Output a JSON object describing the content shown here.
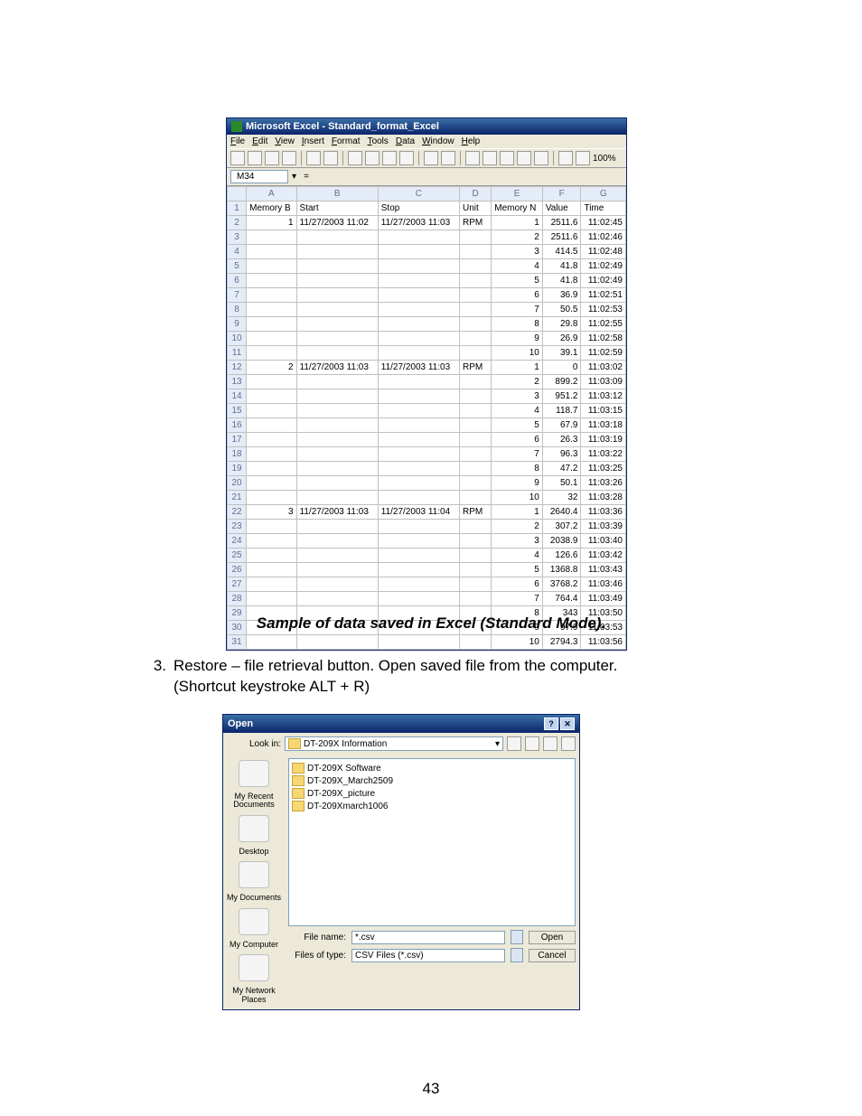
{
  "excel": {
    "title": "Microsoft Excel - Standard_format_Excel",
    "menus": [
      "File",
      "Edit",
      "View",
      "Insert",
      "Format",
      "Tools",
      "Data",
      "Window",
      "Help"
    ],
    "namebox": "M34",
    "zoom": "100%",
    "columns": [
      "A",
      "B",
      "C",
      "D",
      "E",
      "F",
      "G"
    ],
    "headerRow": [
      "Memory B",
      "Start",
      "Stop",
      "Unit",
      "Memory N",
      "Value",
      "Time"
    ],
    "rows": [
      [
        "1",
        "11/27/2003 11:02",
        "11/27/2003 11:03",
        "RPM",
        "1",
        "2511.6",
        "11:02:45"
      ],
      [
        "",
        "",
        "",
        "",
        "2",
        "2511.6",
        "11:02:46"
      ],
      [
        "",
        "",
        "",
        "",
        "3",
        "414.5",
        "11:02:48"
      ],
      [
        "",
        "",
        "",
        "",
        "4",
        "41.8",
        "11:02:49"
      ],
      [
        "",
        "",
        "",
        "",
        "5",
        "41.8",
        "11:02:49"
      ],
      [
        "",
        "",
        "",
        "",
        "6",
        "36.9",
        "11:02:51"
      ],
      [
        "",
        "",
        "",
        "",
        "7",
        "50.5",
        "11:02:53"
      ],
      [
        "",
        "",
        "",
        "",
        "8",
        "29.8",
        "11:02:55"
      ],
      [
        "",
        "",
        "",
        "",
        "9",
        "26.9",
        "11:02:58"
      ],
      [
        "",
        "",
        "",
        "",
        "10",
        "39.1",
        "11:02:59"
      ],
      [
        "2",
        "11/27/2003 11:03",
        "11/27/2003 11:03",
        "RPM",
        "1",
        "0",
        "11:03:02"
      ],
      [
        "",
        "",
        "",
        "",
        "2",
        "899.2",
        "11:03:09"
      ],
      [
        "",
        "",
        "",
        "",
        "3",
        "951.2",
        "11:03:12"
      ],
      [
        "",
        "",
        "",
        "",
        "4",
        "118.7",
        "11:03:15"
      ],
      [
        "",
        "",
        "",
        "",
        "5",
        "67.9",
        "11:03:18"
      ],
      [
        "",
        "",
        "",
        "",
        "6",
        "26.3",
        "11:03:19"
      ],
      [
        "",
        "",
        "",
        "",
        "7",
        "96.3",
        "11:03:22"
      ],
      [
        "",
        "",
        "",
        "",
        "8",
        "47.2",
        "11:03:25"
      ],
      [
        "",
        "",
        "",
        "",
        "9",
        "50.1",
        "11:03:26"
      ],
      [
        "",
        "",
        "",
        "",
        "10",
        "32",
        "11:03:28"
      ],
      [
        "3",
        "11/27/2003 11:03",
        "11/27/2003 11:04",
        "RPM",
        "1",
        "2640.4",
        "11:03:36"
      ],
      [
        "",
        "",
        "",
        "",
        "2",
        "307.2",
        "11:03:39"
      ],
      [
        "",
        "",
        "",
        "",
        "3",
        "2038.9",
        "11:03:40"
      ],
      [
        "",
        "",
        "",
        "",
        "4",
        "126.6",
        "11:03:42"
      ],
      [
        "",
        "",
        "",
        "",
        "5",
        "1368.8",
        "11:03:43"
      ],
      [
        "",
        "",
        "",
        "",
        "6",
        "3768.2",
        "11:03:46"
      ],
      [
        "",
        "",
        "",
        "",
        "7",
        "764.4",
        "11:03:49"
      ],
      [
        "",
        "",
        "",
        "",
        "8",
        "343",
        "11:03:50"
      ],
      [
        "",
        "",
        "",
        "",
        "9",
        "97.9",
        "11:03:53"
      ],
      [
        "",
        "",
        "",
        "",
        "10",
        "2794.3",
        "11:03:56"
      ]
    ]
  },
  "caption": "Sample of data saved in Excel (Standard Mode).",
  "body": {
    "num": "3.",
    "text1": "Restore – file retrieval button. Open saved file from the computer.",
    "text2": "(Shortcut keystroke ALT + R)"
  },
  "open": {
    "title": "Open",
    "lookinLabel": "Look in:",
    "lookin": "DT-209X Information",
    "folders": [
      "DT-209X Software",
      "DT-209X_March2509",
      "DT-209X_picture",
      "DT-209Xmarch1006"
    ],
    "side": [
      "My Recent Documents",
      "Desktop",
      "My Documents",
      "My Computer",
      "My Network Places"
    ],
    "fileNameLabel": "File name:",
    "fileName": "*.csv",
    "fileTypeLabel": "Files of type:",
    "fileType": "CSV Files (*.csv)",
    "openBtn": "Open",
    "cancelBtn": "Cancel"
  },
  "pagenum": "43"
}
